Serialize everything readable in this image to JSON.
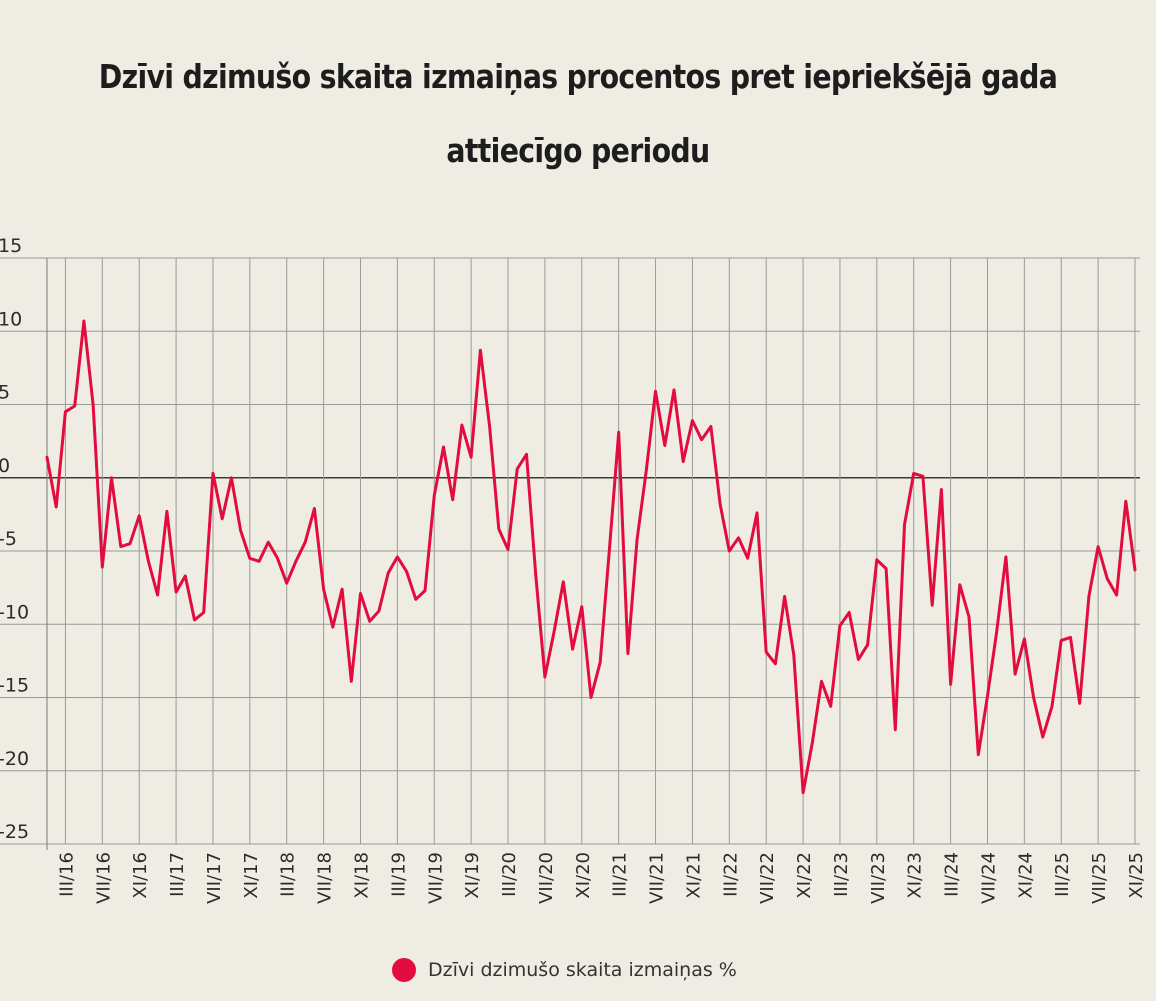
{
  "chart_data": {
    "type": "line",
    "title": "Dzīvi dzimušo skaita izmaiņas procentos pret iepriekšējā gada attiecīgo periodu",
    "xlabel": "",
    "ylabel": "",
    "ylim": [
      -25,
      15
    ],
    "yticks": [
      15,
      10,
      5,
      0,
      -5,
      -10,
      -15,
      -20,
      -25
    ],
    "ytick_labels": [
      "15",
      "10",
      "5",
      "0",
      "-5",
      "-10",
      "-15",
      "-20",
      "-25"
    ],
    "x_start": "I/16",
    "x_end": "XI/25",
    "xtick_labels": [
      "III/16",
      "VII/16",
      "XI/16",
      "III/17",
      "VII/17",
      "XI/17",
      "III/18",
      "VII/18",
      "XI/18",
      "III/19",
      "VII/19",
      "XI/19",
      "III/20",
      "VII/20",
      "XI/20",
      "III/21",
      "VII/21",
      "XI/21",
      "III/22",
      "VII/22",
      "XI/22",
      "III/23",
      "VII/23",
      "XI/23",
      "III/24",
      "VII/24",
      "XI/24",
      "III/25",
      "VII/25",
      "XI/25"
    ],
    "grid": true,
    "legend_position": "bottom",
    "series": [
      {
        "name": "Dzīvi dzimušo skaita izmaiņas %",
        "color": "#e30c3f",
        "values": [
          1.4,
          -2.0,
          4.5,
          4.9,
          10.7,
          5.0,
          -6.1,
          0.0,
          -4.7,
          -4.5,
          -2.6,
          -5.7,
          -8.0,
          -2.3,
          -7.8,
          -6.7,
          -9.7,
          -9.2,
          0.3,
          -2.8,
          0.0,
          -3.6,
          -5.5,
          -5.7,
          -4.4,
          -5.5,
          -7.2,
          -5.7,
          -4.4,
          -2.1,
          -7.6,
          -10.2,
          -7.6,
          -13.9,
          -7.9,
          -9.8,
          -9.1,
          -6.5,
          -5.4,
          -6.4,
          -8.3,
          -7.7,
          -1.2,
          2.1,
          -1.5,
          3.6,
          1.4,
          8.7,
          3.5,
          -3.5,
          -4.9,
          0.6,
          1.6,
          -6.6,
          -13.6,
          -10.5,
          -7.1,
          -11.7,
          -8.8,
          -15.0,
          -12.6,
          -4.9,
          3.1,
          -12.0,
          -4.2,
          0.5,
          5.9,
          2.2,
          6.0,
          1.1,
          3.9,
          2.6,
          3.5,
          -1.8,
          -5.0,
          -4.1,
          -5.5,
          -2.4,
          -11.9,
          -12.7,
          -8.1,
          -12.1,
          -21.5,
          -18.1,
          -13.9,
          -15.6,
          -10.1,
          -9.2,
          -12.4,
          -11.4,
          -5.6,
          -6.2,
          -17.2,
          -3.2,
          0.3,
          0.1,
          -8.7,
          -0.8,
          -14.1,
          -7.3,
          -9.5,
          -18.9,
          -14.9,
          -10.5,
          -5.4,
          -13.4,
          -11.0,
          -15.0,
          -17.7,
          -15.6,
          -11.1,
          -10.9,
          -15.4,
          -8.1,
          -4.7,
          -6.9,
          -8.0,
          -1.6,
          -6.3
        ]
      }
    ]
  },
  "legend": {
    "label": "Dzīvi dzimušo skaita izmaiņas %",
    "color": "#e30c3f"
  }
}
